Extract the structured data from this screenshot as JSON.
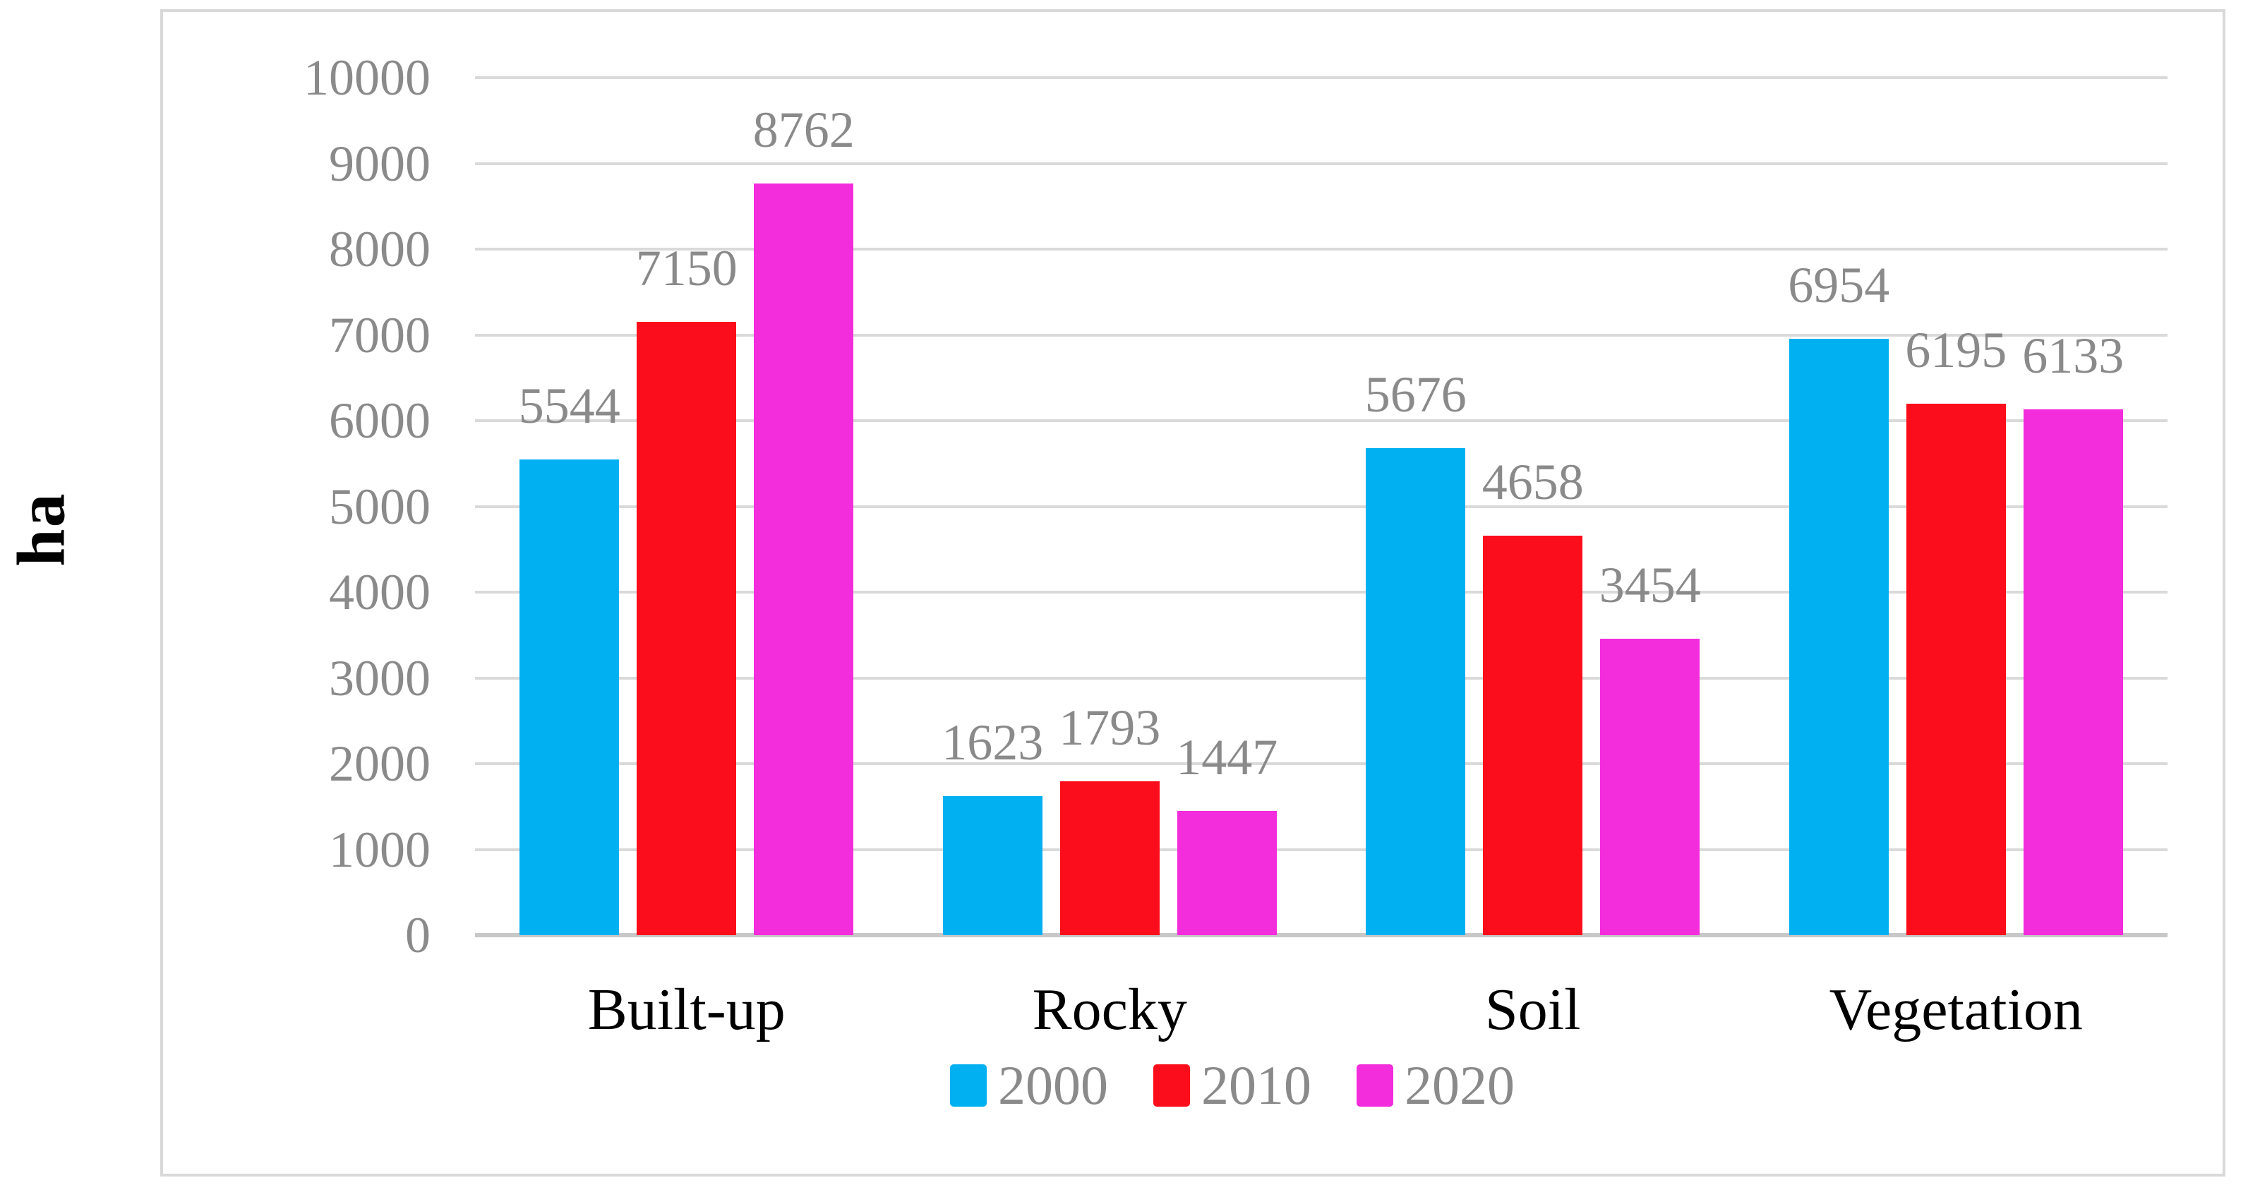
{
  "chart_data": {
    "type": "bar",
    "title": "",
    "xlabel": "",
    "ylabel": "ha",
    "categories": [
      "Built-up",
      "Rocky",
      "Soil",
      "Vegetation"
    ],
    "series": [
      {
        "name": "2000",
        "color": "#00b0f0",
        "values": [
          5544,
          1623,
          5676,
          6954
        ]
      },
      {
        "name": "2010",
        "color": "#fc0d1b",
        "values": [
          7150,
          1793,
          4658,
          6195
        ]
      },
      {
        "name": "2020",
        "color": "#f32cdc",
        "values": [
          8762,
          1447,
          3454,
          6133
        ]
      }
    ],
    "ylim": [
      0,
      10000
    ],
    "ytick_step": 1000,
    "yticks": [
      0,
      1000,
      2000,
      3000,
      4000,
      5000,
      6000,
      7000,
      8000,
      9000,
      10000
    ],
    "grid": true,
    "data_labels": true,
    "legend_position": "bottom-center"
  },
  "style": {
    "background": "#ffffff",
    "frame_border_color": "#d9d9d9",
    "grid_color": "#dadada",
    "axis_line_color": "#c8c8c8",
    "tick_label_color": "#8a8a8a",
    "data_label_color": "#8a8a8a",
    "category_label_color": "#000000",
    "y_title_color": "#000000"
  }
}
